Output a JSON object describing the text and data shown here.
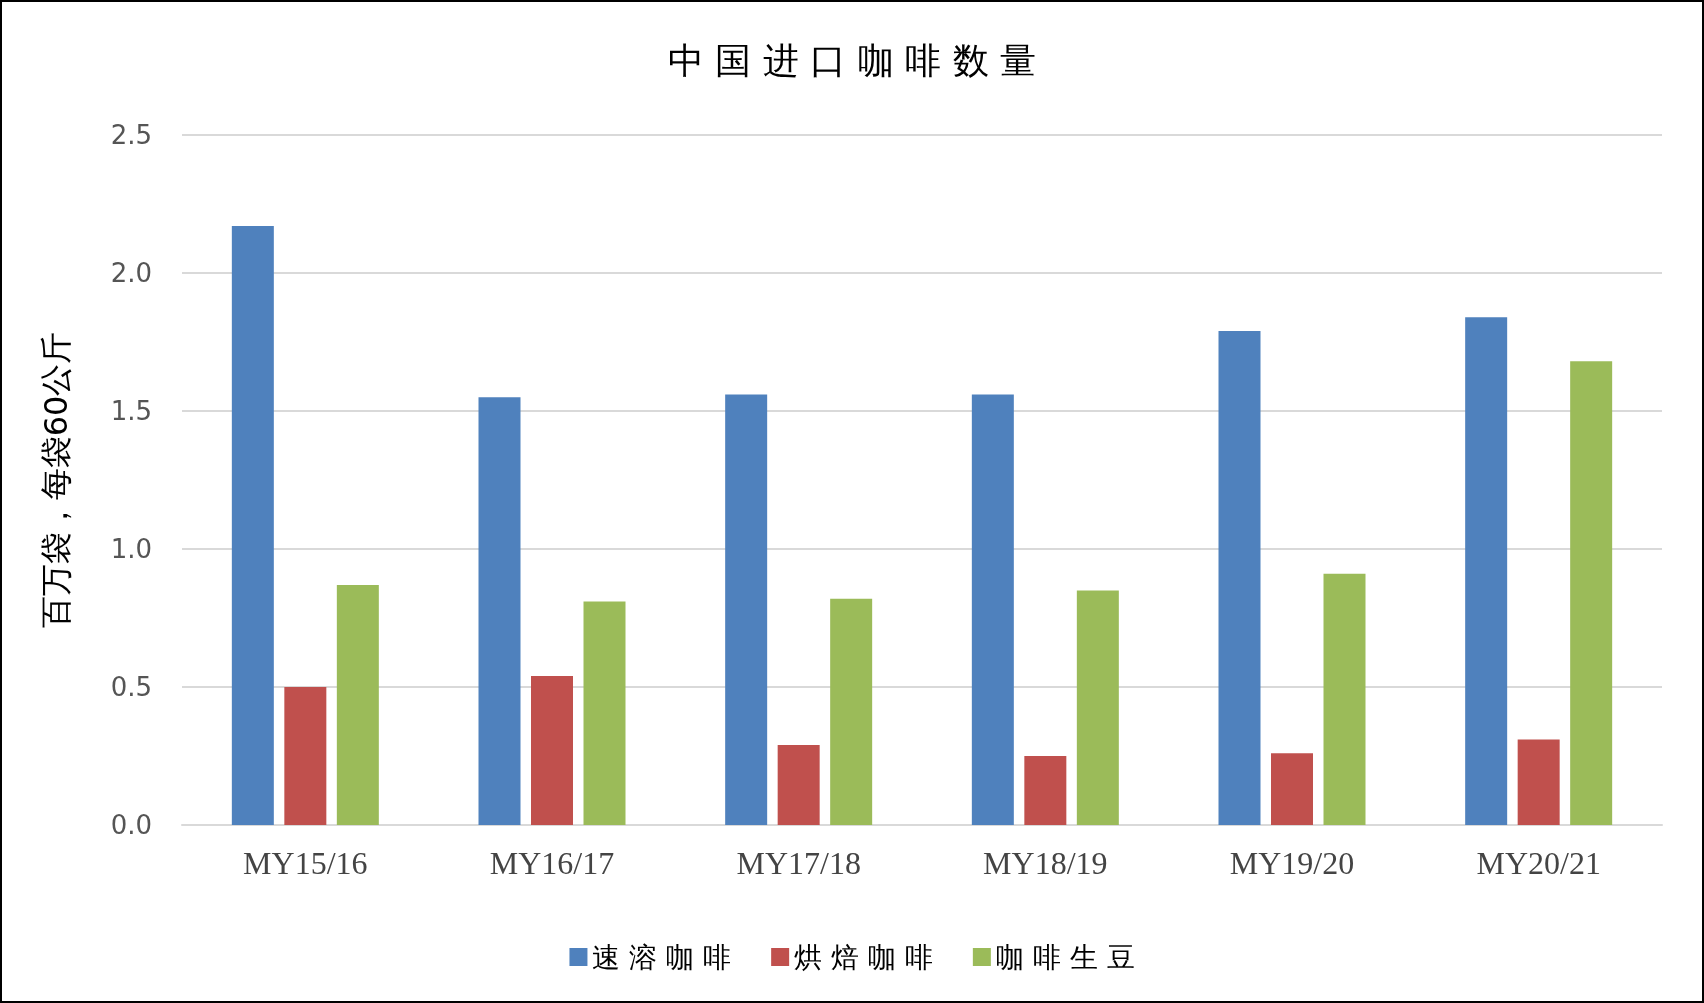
{
  "chart_data": {
    "type": "bar",
    "title": "中 国 进 口 咖 啡 数 量",
    "ylabel": "百万袋，每袋60公斤",
    "categories": [
      "MY15/16",
      "MY16/17",
      "MY17/18",
      "MY18/19",
      "MY19/20",
      "MY20/21"
    ],
    "series": [
      {
        "name": "速 溶 咖 啡",
        "color": "#4f81bd",
        "values": [
          2.17,
          1.55,
          1.56,
          1.56,
          1.79,
          1.84
        ]
      },
      {
        "name": "烘 焙 咖 啡",
        "color": "#c0504d",
        "values": [
          0.5,
          0.54,
          0.29,
          0.25,
          0.26,
          0.31
        ]
      },
      {
        "name": "咖 啡 生 豆",
        "color": "#9bbb59",
        "values": [
          0.87,
          0.81,
          0.82,
          0.85,
          0.91,
          1.68
        ]
      }
    ],
    "ylim": [
      0,
      2.5
    ],
    "yticks": [
      {
        "value": 0,
        "label": "0.0"
      },
      {
        "value": 0.5,
        "label": "0.5"
      },
      {
        "value": 1,
        "label": "1.0"
      },
      {
        "value": 1.5,
        "label": "1.5"
      },
      {
        "value": 2,
        "label": "2.0"
      },
      {
        "value": 2.5,
        "label": "2.5"
      }
    ],
    "grid": "y",
    "legend": "bottom"
  }
}
